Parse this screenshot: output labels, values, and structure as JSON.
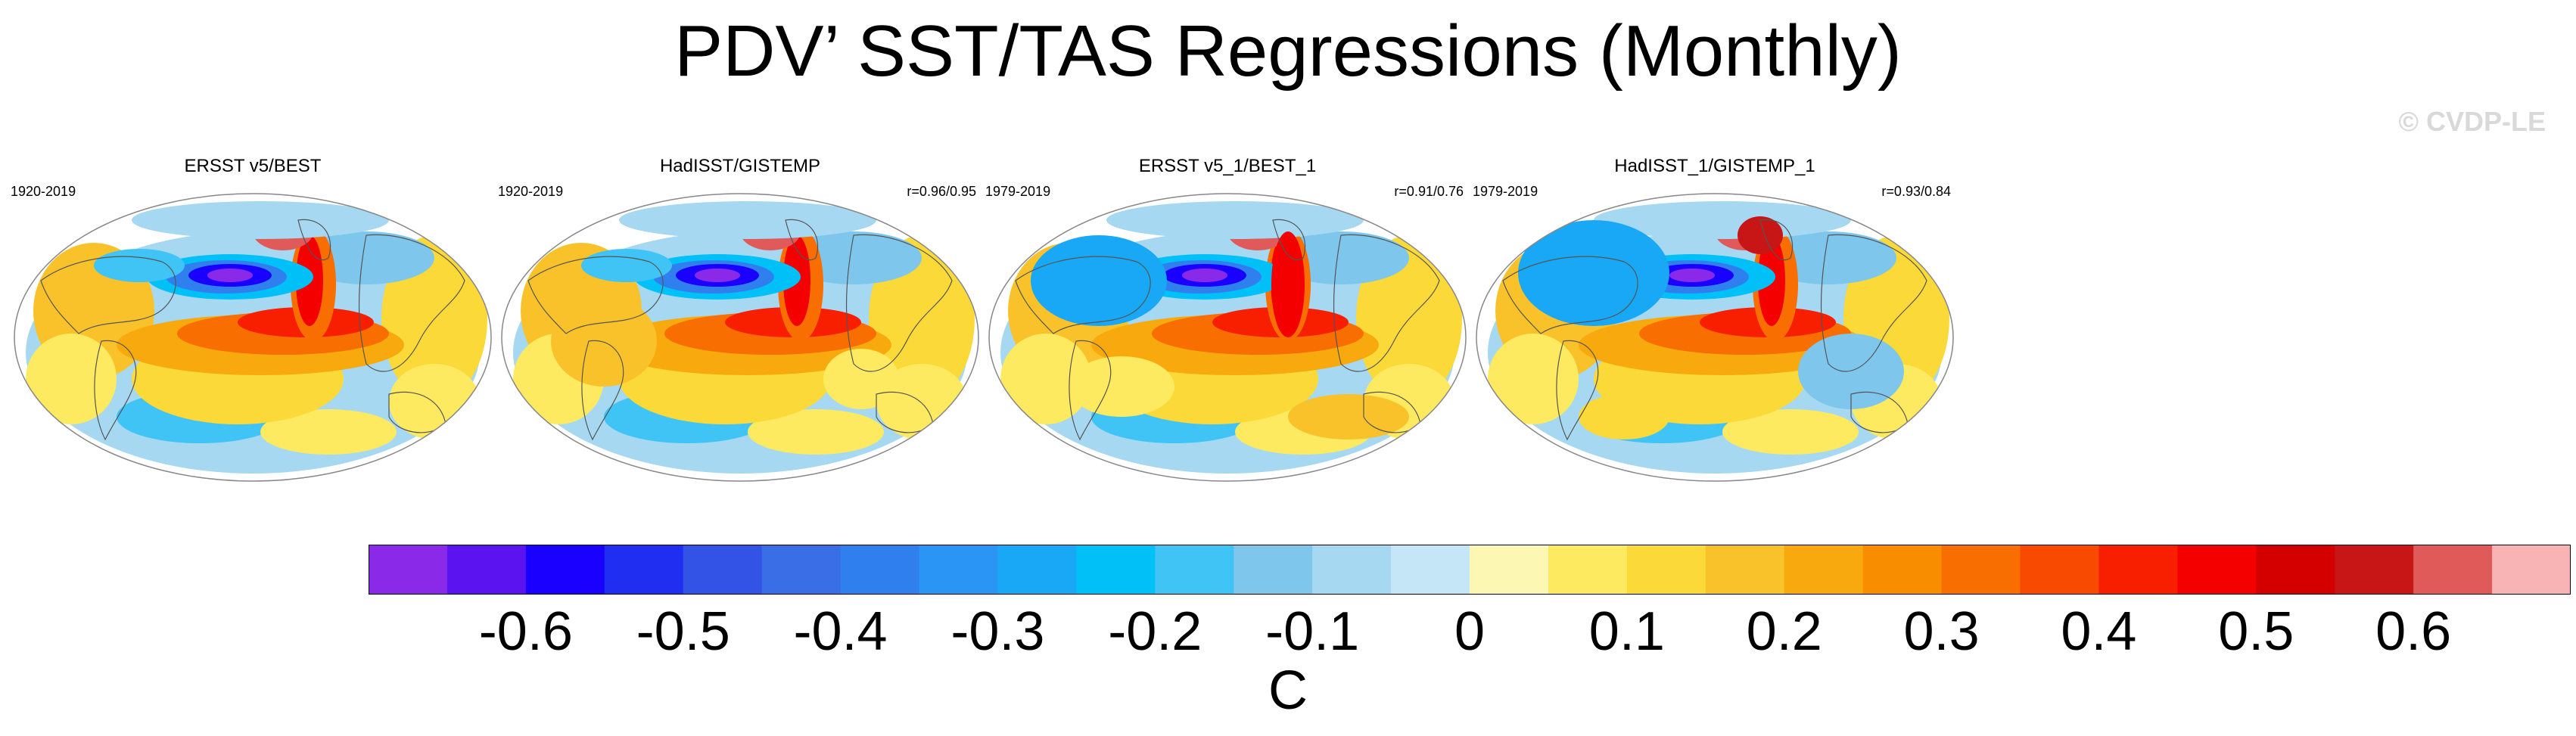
{
  "chart_data": {
    "type": "heatmap",
    "title": "PDV’ SST/TAS Regressions (Monthly)",
    "watermark": "© CVDP-LE",
    "panels": [
      {
        "name": "ERSST v5/BEST",
        "period": "1920-2019",
        "correlation": ""
      },
      {
        "name": "HadISST/GISTEMP",
        "period": "1920-2019",
        "correlation": "r=0.96/0.95"
      },
      {
        "name": "ERSST v5_1/BEST_1",
        "period": "1979-2019",
        "correlation": "r=0.91/0.76"
      },
      {
        "name": "HadISST_1/GISTEMP_1",
        "period": "1979-2019",
        "correlation": "r=0.93/0.84"
      }
    ],
    "colorbar": {
      "units": "C",
      "range": [
        -0.7,
        0.7
      ],
      "step": 0.05,
      "tick_labels": [
        "-0.6",
        "-0.5",
        "-0.4",
        "-0.3",
        "-0.2",
        "-0.1",
        "0",
        "0.1",
        "0.2",
        "0.3",
        "0.4",
        "0.5",
        "0.6"
      ],
      "tick_values": [
        -0.6,
        -0.5,
        -0.4,
        -0.3,
        -0.2,
        -0.1,
        0,
        0.1,
        0.2,
        0.3,
        0.4,
        0.5,
        0.6
      ],
      "colors": [
        "#8a2ae8",
        "#5b14f0",
        "#1a00ff",
        "#1f2ef0",
        "#3253e6",
        "#3a6ee6",
        "#2f80ee",
        "#2a95f5",
        "#18a8f5",
        "#00c0f8",
        "#40c4f6",
        "#7ec6ec",
        "#a6d8f2",
        "#c4e6f6",
        "#fcf8b4",
        "#fdea60",
        "#fbd938",
        "#fac22a",
        "#f8a90e",
        "#f88d00",
        "#f86e00",
        "#f84a00",
        "#f81e00",
        "#f40000",
        "#d40000",
        "#c81616",
        "#e05a5a",
        "#f8b4b4"
      ]
    }
  }
}
